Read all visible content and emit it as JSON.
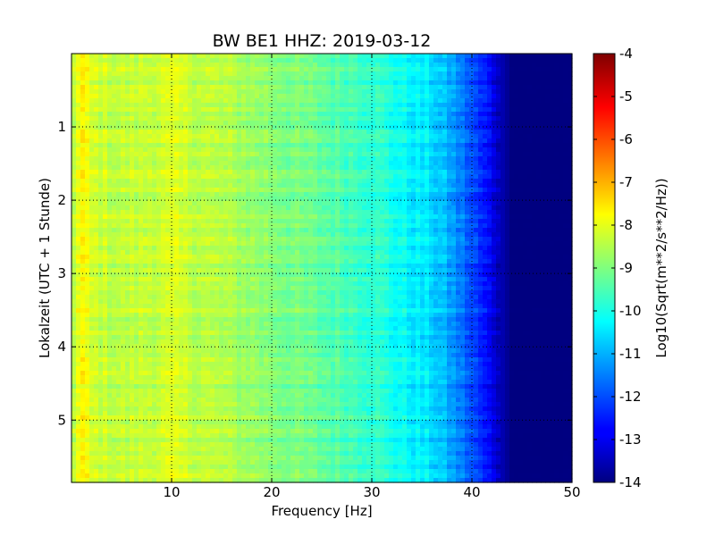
{
  "chart_data": {
    "type": "heatmap",
    "title": "BW BE1 HHZ: 2019-03-12",
    "xlabel": "Frequency [Hz]",
    "ylabel": "Lokalzeit (UTC + 1 Stunde)",
    "colorbar_label": "Log10(Sqrt(m**2/s**2/Hz))",
    "xlim": [
      0,
      50
    ],
    "ylim": [
      5.85,
      0
    ],
    "x_ticks": [
      "10",
      "20",
      "30",
      "40",
      "50"
    ],
    "y_ticks": [
      "1",
      "2",
      "3",
      "4",
      "5"
    ],
    "colorbar_range": [
      -14,
      -4
    ],
    "colorbar_ticks": [
      "-4",
      "-5",
      "-6",
      "-7",
      "-8",
      "-9",
      "-10",
      "-11",
      "-12",
      "-13",
      "-14"
    ],
    "colormap": "jet",
    "grid": true,
    "grid_style": "dotted",
    "frequency_profile": {
      "frequency_hz": [
        0,
        1,
        2,
        5,
        10,
        15,
        20,
        25,
        30,
        33,
        36,
        38,
        40,
        42,
        43,
        44,
        50
      ],
      "log10_amplitude": [
        -8.5,
        -7.7,
        -8.2,
        -8.4,
        -8.2,
        -8.5,
        -8.9,
        -9.3,
        -9.7,
        -10.2,
        -10.6,
        -11.2,
        -12.0,
        -12.9,
        -13.5,
        -14.0,
        -14.0
      ]
    }
  }
}
